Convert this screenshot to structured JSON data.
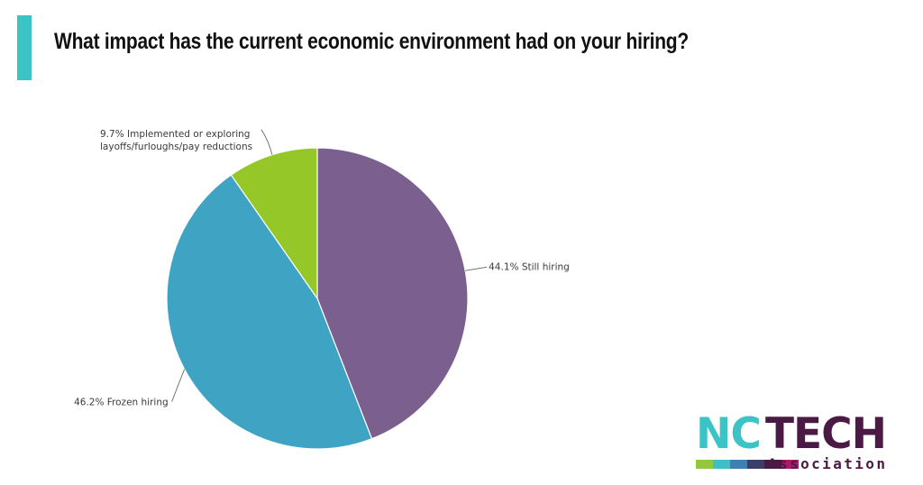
{
  "title": "What impact has the current economic environment had on your hiring?",
  "colors": {
    "accent_bar": "#3cc3c5",
    "title": "#111111",
    "logo_nc": "#3cc3c5",
    "logo_tech": "#4a1a45",
    "logo_assoc": "#4a1a45",
    "logo_stripes": [
      "#93c83e",
      "#3ebfc2",
      "#3f7fb1",
      "#3b3e66",
      "#4a1a45",
      "#b0186a"
    ]
  },
  "logo": {
    "nc": "NC",
    "tech": "TECH",
    "association": "Association"
  },
  "chart_data": {
    "type": "pie",
    "start_angle_deg": 0,
    "direction": "clockwise",
    "slices": [
      {
        "label": "Still hiring",
        "value": 44.1,
        "display": "44.1% Still hiring",
        "color": "#7b5f8e"
      },
      {
        "label": "Frozen hiring",
        "value": 46.2,
        "display": "46.2% Frozen hiring",
        "color": "#3fa3c3"
      },
      {
        "label": "Implemented or exploring layoffs/furloughs/pay reductions",
        "value": 9.7,
        "display_lines": [
          "9.7% Implemented or exploring",
          "layoffs/furloughs/pay reductions"
        ],
        "color": "#95c728"
      }
    ]
  }
}
